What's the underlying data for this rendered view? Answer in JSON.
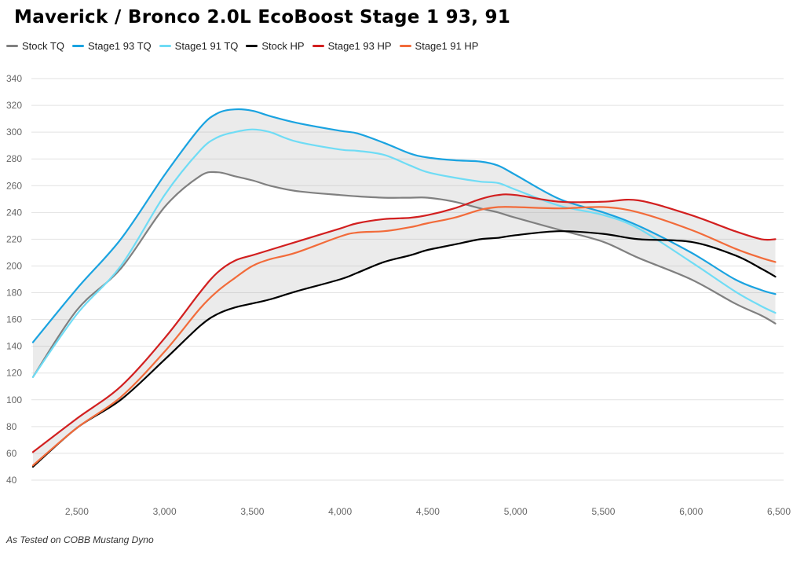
{
  "title": "Maverick / Bronco 2.0L EcoBoost Stage 1 93, 91",
  "footnote": "As Tested on COBB Mustang Dyno",
  "chart_data": {
    "type": "line",
    "title": "Maverick / Bronco 2.0L EcoBoost Stage 1 93, 91",
    "xlabel": "",
    "ylabel": "",
    "xlim": [
      2250,
      6500
    ],
    "ylim": [
      40,
      340
    ],
    "xticks": [
      2500,
      3000,
      3500,
      4000,
      4500,
      5000,
      5500,
      6000,
      6500
    ],
    "yticks": [
      40,
      60,
      80,
      100,
      120,
      140,
      160,
      180,
      200,
      220,
      240,
      260,
      280,
      300,
      320,
      340
    ],
    "grid": "horizontal",
    "legend_position": "top-left",
    "x": [
      2250,
      2500,
      2750,
      3000,
      3200,
      3300,
      3400,
      3500,
      3600,
      3750,
      4000,
      4100,
      4250,
      4400,
      4500,
      4650,
      4800,
      4900,
      5000,
      5250,
      5500,
      5700,
      6000,
      6250,
      6400,
      6480
    ],
    "series": [
      {
        "name": "Stock TQ",
        "color": "#808080",
        "values": [
          117,
          167,
          198,
          244,
          267,
          270,
          267,
          264,
          260,
          256,
          253,
          252,
          251,
          251,
          251,
          248,
          243,
          240,
          236,
          227,
          218,
          206,
          190,
          172,
          163,
          157
        ]
      },
      {
        "name": "Stage1 93 TQ",
        "color": "#1aa3e0",
        "values": [
          143,
          183,
          220,
          268,
          303,
          314,
          317,
          316,
          312,
          307,
          301,
          299,
          292,
          284,
          281,
          279,
          278,
          275,
          268,
          250,
          240,
          230,
          210,
          190,
          182,
          179
        ]
      },
      {
        "name": "Stage1 91 TQ",
        "color": "#6fdcf5",
        "values": [
          117,
          164,
          200,
          253,
          286,
          296,
          300,
          302,
          300,
          293,
          287,
          286,
          283,
          275,
          270,
          266,
          263,
          262,
          257,
          245,
          238,
          228,
          203,
          181,
          170,
          165
        ]
      },
      {
        "name": "Stock HP",
        "color": "#000000",
        "values": [
          50,
          79,
          100,
          130,
          155,
          164,
          169,
          172,
          175,
          181,
          190,
          195,
          203,
          208,
          212,
          216,
          220,
          221,
          223,
          226,
          224,
          220,
          218,
          208,
          198,
          192
        ]
      },
      {
        "name": "Stage1 93 HP",
        "color": "#d21f1f",
        "values": [
          61,
          86,
          110,
          146,
          180,
          195,
          204,
          208,
          212,
          218,
          228,
          232,
          235,
          236,
          238,
          243,
          250,
          253,
          253,
          248,
          248,
          249,
          238,
          226,
          220,
          220
        ]
      },
      {
        "name": "Stage1 91 HP",
        "color": "#f26b3a",
        "values": [
          51,
          79,
          102,
          136,
          168,
          181,
          191,
          200,
          205,
          210,
          222,
          225,
          226,
          229,
          232,
          236,
          242,
          244,
          244,
          243,
          244,
          240,
          227,
          213,
          206,
          203
        ]
      }
    ],
    "bands": [
      {
        "lower": "Stock TQ",
        "upper": "Stage1 93 TQ",
        "color": "#b0b0b0"
      },
      {
        "lower": "Stock HP",
        "upper": "Stage1 93 HP",
        "color": "#b0b0b0"
      }
    ]
  }
}
